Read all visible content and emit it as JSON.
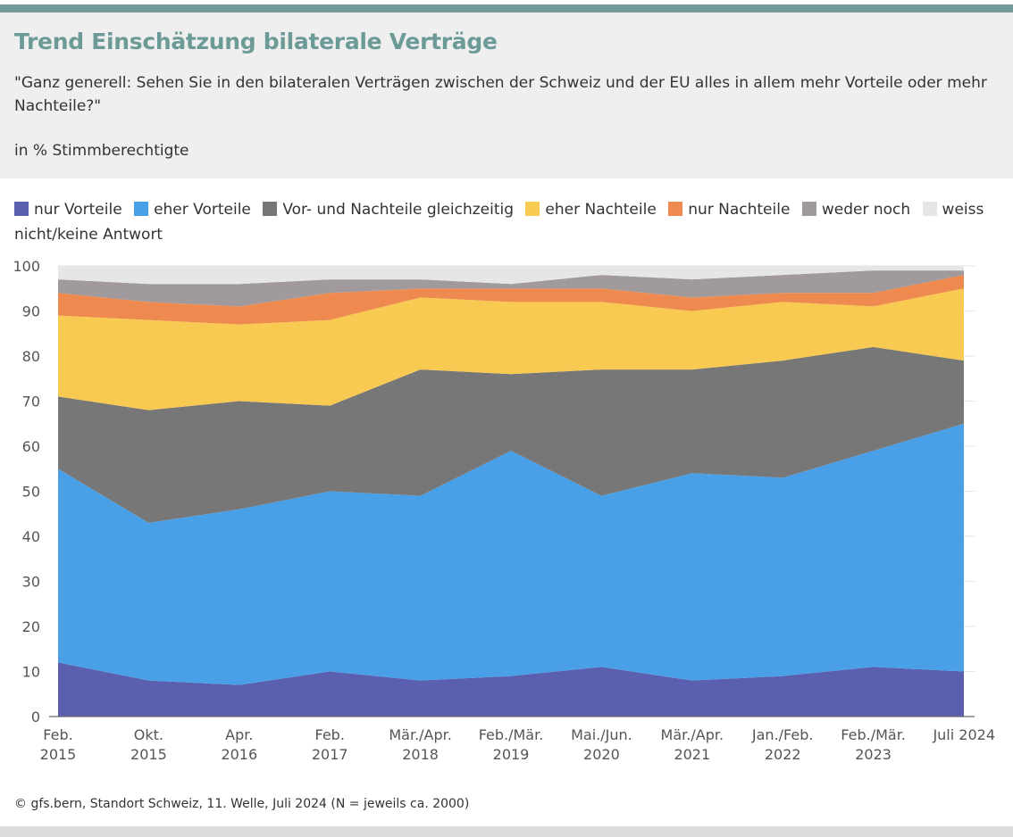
{
  "header": {
    "title": "Trend Einschätzung bilaterale Verträge",
    "question": "\"Ganz generell: Sehen Sie in den bilateralen Verträgen zwischen der Schweiz und der EU alles in allem mehr Vorteile oder mehr Nachteile?\"",
    "unit": "in % Stimmberechtigte"
  },
  "footer": {
    "source": "© gfs.bern, Standort Schweiz, 11. Welle, Juli 2024 (N = jeweils ca. 2000)"
  },
  "chart_data": {
    "type": "area",
    "stacked": true,
    "ylim": [
      0,
      100
    ],
    "yticks": [
      0,
      10,
      20,
      30,
      40,
      50,
      60,
      70,
      80,
      90,
      100
    ],
    "categories": [
      [
        "Feb.",
        "2015"
      ],
      [
        "Okt.",
        "2015"
      ],
      [
        "Apr.",
        "2016"
      ],
      [
        "Feb.",
        "2017"
      ],
      [
        "Mär./Apr.",
        "2018"
      ],
      [
        "Feb./Mär.",
        "2019"
      ],
      [
        "Mai./Jun.",
        "2020"
      ],
      [
        "Mär./Apr.",
        "2021"
      ],
      [
        "Jan./Feb.",
        "2022"
      ],
      [
        "Feb./Mär.",
        "2023"
      ],
      [
        "Juli 2024",
        ""
      ]
    ],
    "legend_position": "top",
    "series": [
      {
        "name": "nur Vorteile",
        "color": "#5a5fb0",
        "values": [
          12,
          8,
          7,
          10,
          8,
          9,
          11,
          8,
          9,
          11,
          10
        ]
      },
      {
        "name": "eher Vorteile",
        "color": "#4aa0e6",
        "values": [
          43,
          35,
          39,
          40,
          41,
          50,
          38,
          46,
          44,
          48,
          55
        ]
      },
      {
        "name": "Vor- und Nachteile gleichzeitig",
        "color": "#777777",
        "values": [
          16,
          25,
          24,
          19,
          28,
          17,
          28,
          23,
          26,
          23,
          14
        ]
      },
      {
        "name": "eher Nachteile",
        "color": "#f9ca51",
        "values": [
          18,
          20,
          17,
          19,
          16,
          16,
          15,
          13,
          13,
          9,
          16
        ]
      },
      {
        "name": "nur Nachteile",
        "color": "#ee8a4f",
        "values": [
          5,
          4,
          4,
          6,
          2,
          3,
          3,
          3,
          2,
          3,
          3
        ]
      },
      {
        "name": "weder noch",
        "color": "#a09a9c",
        "values": [
          3,
          4,
          5,
          3,
          2,
          1,
          3,
          4,
          4,
          5,
          1
        ]
      },
      {
        "name": "weiss nicht/keine Antwort",
        "color": "#e6e6e6",
        "values": [
          3,
          4,
          4,
          3,
          3,
          4,
          2,
          3,
          2,
          1,
          1
        ]
      }
    ]
  }
}
